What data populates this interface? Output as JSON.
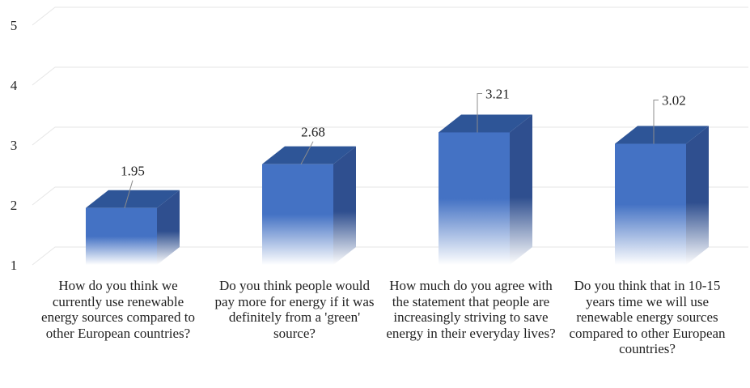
{
  "chart_data": {
    "type": "bar",
    "title": "",
    "xlabel": "",
    "ylabel": "",
    "ylim": [
      1,
      5
    ],
    "yticks": [
      1,
      2,
      3,
      4,
      5
    ],
    "grid": true,
    "categories": [
      "How do you think we currently use renewable energy sources compared to other European countries?",
      "Do you think people would pay more for energy if it was definitely from a 'green' source?",
      "How much do you agree with the statement that people are increasingly striving to save energy in their everyday lives?",
      "Do you think that in 10-15 years time we will use renewable energy sources compared to other European countries?"
    ],
    "values": [
      1.95,
      2.68,
      3.21,
      3.02
    ],
    "data_labels": [
      "1.95",
      "2.68",
      "3.21",
      "3.02"
    ],
    "colors": {
      "bar_front": "#4472c4",
      "bar_side": "#2f4f8f",
      "bar_top": "#2e5597",
      "grid": "#e6e6e6"
    }
  }
}
